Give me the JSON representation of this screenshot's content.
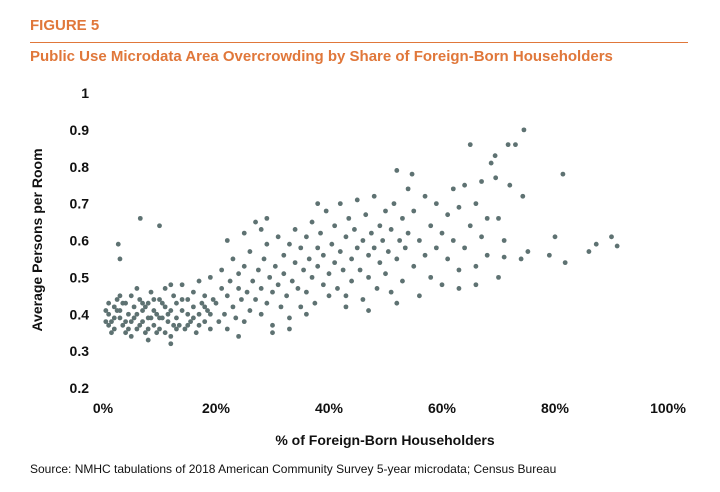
{
  "figure_label": "FIGURE 5",
  "source": "Source: NMHC tabulations of 2018 American Community Survey 5-year microdata; Census Bureau",
  "chart_data": {
    "type": "scatter",
    "title": "Public Use Microdata Area Overcrowding by Share of Foreign-Born Householders",
    "xlabel": "% of Foreign-Born Householders",
    "ylabel": "Average Persons per Room",
    "xlim": [
      0,
      100
    ],
    "ylim": [
      0.2,
      1
    ],
    "x_ticks": [
      "0%",
      "20%",
      "40%",
      "60%",
      "80%",
      "100%"
    ],
    "x_tick_values": [
      0,
      20,
      40,
      60,
      80,
      100
    ],
    "y_ticks": [
      "0.2",
      "0.3",
      "0.4",
      "0.5",
      "0.6",
      "0.7",
      "0.8",
      "0.9",
      "1"
    ],
    "y_tick_values": [
      0.2,
      0.3,
      0.4,
      0.5,
      0.6,
      0.7,
      0.8,
      0.9,
      1
    ],
    "grid": false,
    "marker_color": "#5e7272",
    "points": [
      [
        1,
        0.4
      ],
      [
        1.5,
        0.38
      ],
      [
        2,
        0.42
      ],
      [
        2,
        0.36
      ],
      [
        2.5,
        0.44
      ],
      [
        3,
        0.39
      ],
      [
        3,
        0.41
      ],
      [
        3.5,
        0.37
      ],
      [
        4,
        0.43
      ],
      [
        4,
        0.35
      ],
      [
        4.5,
        0.4
      ],
      [
        5,
        0.38
      ],
      [
        5,
        0.45
      ],
      [
        5.5,
        0.42
      ],
      [
        6,
        0.36
      ],
      [
        6,
        0.4
      ],
      [
        6.5,
        0.44
      ],
      [
        7,
        0.38
      ],
      [
        7,
        0.41
      ],
      [
        7.5,
        0.35
      ],
      [
        8,
        0.43
      ],
      [
        8,
        0.39
      ],
      [
        8.5,
        0.46
      ],
      [
        9,
        0.37
      ],
      [
        9,
        0.41
      ],
      [
        9.5,
        0.4
      ],
      [
        10,
        0.44
      ],
      [
        10,
        0.36
      ],
      [
        10.5,
        0.39
      ],
      [
        11,
        0.42
      ],
      [
        11,
        0.47
      ],
      [
        11.5,
        0.38
      ],
      [
        12,
        0.41
      ],
      [
        12,
        0.34
      ],
      [
        12.5,
        0.45
      ],
      [
        13,
        0.39
      ],
      [
        13,
        0.43
      ],
      [
        13.5,
        0.37
      ],
      [
        14,
        0.41
      ],
      [
        14,
        0.48
      ],
      [
        14.5,
        0.36
      ],
      [
        15,
        0.44
      ],
      [
        15,
        0.4
      ],
      [
        15.5,
        0.38
      ],
      [
        16,
        0.46
      ],
      [
        16,
        0.42
      ],
      [
        16.5,
        0.35
      ],
      [
        17,
        0.4
      ],
      [
        17,
        0.49
      ],
      [
        17.5,
        0.43
      ],
      [
        18,
        0.38
      ],
      [
        18,
        0.45
      ],
      [
        18.5,
        0.41
      ],
      [
        19,
        0.36
      ],
      [
        19,
        0.5
      ],
      [
        19.5,
        0.44
      ],
      [
        1,
        0.43
      ],
      [
        1.5,
        0.35
      ],
      [
        2,
        0.39
      ],
      [
        3,
        0.45
      ],
      [
        4,
        0.38
      ],
      [
        5,
        0.34
      ],
      [
        6,
        0.47
      ],
      [
        7,
        0.43
      ],
      [
        8,
        0.36
      ],
      [
        9,
        0.44
      ],
      [
        10,
        0.39
      ],
      [
        11,
        0.35
      ],
      [
        12,
        0.48
      ],
      [
        13,
        0.36
      ],
      [
        14,
        0.44
      ],
      [
        15,
        0.37
      ],
      [
        16,
        0.39
      ],
      [
        17,
        0.37
      ],
      [
        18,
        0.42
      ],
      [
        19,
        0.4
      ],
      [
        0.5,
        0.41
      ],
      [
        0.5,
        0.38
      ],
      [
        1,
        0.37
      ],
      [
        2.5,
        0.41
      ],
      [
        3.5,
        0.43
      ],
      [
        4.5,
        0.36
      ],
      [
        5.5,
        0.39
      ],
      [
        6.5,
        0.37
      ],
      [
        7.5,
        0.42
      ],
      [
        8.5,
        0.39
      ],
      [
        9.5,
        0.35
      ],
      [
        10.5,
        0.43
      ],
      [
        11.5,
        0.4
      ],
      [
        12.5,
        0.37
      ],
      [
        2.7,
        0.59
      ],
      [
        6.6,
        0.66
      ],
      [
        10,
        0.64
      ],
      [
        3,
        0.55
      ],
      [
        8,
        0.33
      ],
      [
        12,
        0.32
      ],
      [
        20,
        0.43
      ],
      [
        20.5,
        0.38
      ],
      [
        21,
        0.47
      ],
      [
        21,
        0.52
      ],
      [
        21.5,
        0.4
      ],
      [
        22,
        0.45
      ],
      [
        22,
        0.36
      ],
      [
        22.5,
        0.49
      ],
      [
        23,
        0.42
      ],
      [
        23,
        0.55
      ],
      [
        23.5,
        0.39
      ],
      [
        24,
        0.47
      ],
      [
        24,
        0.51
      ],
      [
        24.5,
        0.44
      ],
      [
        25,
        0.38
      ],
      [
        25,
        0.53
      ],
      [
        25.5,
        0.46
      ],
      [
        26,
        0.41
      ],
      [
        26,
        0.57
      ],
      [
        26.5,
        0.49
      ],
      [
        27,
        0.44
      ],
      [
        27,
        0.65
      ],
      [
        27.5,
        0.52
      ],
      [
        28,
        0.4
      ],
      [
        28,
        0.47
      ],
      [
        28.5,
        0.55
      ],
      [
        29,
        0.43
      ],
      [
        29,
        0.59
      ],
      [
        29.5,
        0.5
      ],
      [
        30,
        0.46
      ],
      [
        30,
        0.37
      ],
      [
        30.5,
        0.53
      ],
      [
        31,
        0.48
      ],
      [
        31,
        0.61
      ],
      [
        31.5,
        0.42
      ],
      [
        32,
        0.56
      ],
      [
        32,
        0.51
      ],
      [
        32.5,
        0.45
      ],
      [
        33,
        0.59
      ],
      [
        33,
        0.39
      ],
      [
        33.5,
        0.49
      ],
      [
        34,
        0.54
      ],
      [
        34,
        0.63
      ],
      [
        34.5,
        0.47
      ],
      [
        35,
        0.58
      ],
      [
        35,
        0.42
      ],
      [
        35.5,
        0.52
      ],
      [
        36,
        0.61
      ],
      [
        36,
        0.46
      ],
      [
        36.5,
        0.55
      ],
      [
        37,
        0.5
      ],
      [
        37,
        0.65
      ],
      [
        37.5,
        0.43
      ],
      [
        38,
        0.58
      ],
      [
        38,
        0.53
      ],
      [
        38.5,
        0.62
      ],
      [
        39,
        0.48
      ],
      [
        39,
        0.56
      ],
      [
        39.5,
        0.68
      ],
      [
        40,
        0.51
      ],
      [
        40,
        0.45
      ],
      [
        22,
        0.6
      ],
      [
        25,
        0.62
      ],
      [
        28,
        0.63
      ],
      [
        24,
        0.34
      ],
      [
        30,
        0.35
      ],
      [
        33,
        0.36
      ],
      [
        36,
        0.4
      ],
      [
        29,
        0.66
      ],
      [
        38,
        0.7
      ],
      [
        40.5,
        0.59
      ],
      [
        41,
        0.54
      ],
      [
        41,
        0.64
      ],
      [
        41.5,
        0.47
      ],
      [
        42,
        0.57
      ],
      [
        42,
        0.7
      ],
      [
        42.5,
        0.52
      ],
      [
        43,
        0.61
      ],
      [
        43,
        0.45
      ],
      [
        43.5,
        0.66
      ],
      [
        44,
        0.55
      ],
      [
        44,
        0.49
      ],
      [
        44.5,
        0.63
      ],
      [
        45,
        0.58
      ],
      [
        45,
        0.71
      ],
      [
        45.5,
        0.52
      ],
      [
        46,
        0.6
      ],
      [
        46,
        0.44
      ],
      [
        46.5,
        0.67
      ],
      [
        47,
        0.56
      ],
      [
        47,
        0.5
      ],
      [
        47.5,
        0.62
      ],
      [
        48,
        0.72
      ],
      [
        48,
        0.58
      ],
      [
        48.5,
        0.47
      ],
      [
        49,
        0.64
      ],
      [
        49,
        0.54
      ],
      [
        49.5,
        0.6
      ],
      [
        50,
        0.68
      ],
      [
        50,
        0.51
      ],
      [
        50.5,
        0.57
      ],
      [
        51,
        0.63
      ],
      [
        51,
        0.46
      ],
      [
        51.5,
        0.7
      ],
      [
        52,
        0.55
      ],
      [
        52,
        0.79
      ],
      [
        52.5,
        0.6
      ],
      [
        53,
        0.49
      ],
      [
        53,
        0.66
      ],
      [
        53.5,
        0.58
      ],
      [
        54,
        0.62
      ],
      [
        54,
        0.74
      ],
      [
        54.7,
        0.78
      ],
      [
        55,
        0.53
      ],
      [
        55,
        0.68
      ],
      [
        56,
        0.6
      ],
      [
        56,
        0.45
      ],
      [
        57,
        0.72
      ],
      [
        57,
        0.56
      ],
      [
        58,
        0.64
      ],
      [
        58,
        0.5
      ],
      [
        59,
        0.58
      ],
      [
        59,
        0.7
      ],
      [
        60,
        0.62
      ],
      [
        60,
        0.48
      ],
      [
        43,
        0.42
      ],
      [
        47,
        0.41
      ],
      [
        52,
        0.43
      ],
      [
        61,
        0.67
      ],
      [
        61,
        0.55
      ],
      [
        62,
        0.74
      ],
      [
        62,
        0.6
      ],
      [
        63,
        0.52
      ],
      [
        63,
        0.69
      ],
      [
        64,
        0.75
      ],
      [
        64,
        0.58
      ],
      [
        65,
        0.86
      ],
      [
        65,
        0.64
      ],
      [
        66,
        0.53
      ],
      [
        66,
        0.7
      ],
      [
        67,
        0.76
      ],
      [
        67,
        0.61
      ],
      [
        68,
        0.66
      ],
      [
        68,
        0.56
      ],
      [
        68.7,
        0.81
      ],
      [
        69.4,
        0.83
      ],
      [
        69.5,
        0.77
      ],
      [
        70,
        0.66
      ],
      [
        70,
        0.5
      ],
      [
        71,
        0.6
      ],
      [
        71,
        0.555
      ],
      [
        71.7,
        0.86
      ],
      [
        72,
        0.75
      ],
      [
        73,
        0.86
      ],
      [
        74,
        0.55
      ],
      [
        74.3,
        0.72
      ],
      [
        74.5,
        0.9
      ],
      [
        75.2,
        0.57
      ],
      [
        79,
        0.56
      ],
      [
        80,
        0.61
      ],
      [
        81.4,
        0.78
      ],
      [
        81.8,
        0.54
      ],
      [
        86,
        0.57
      ],
      [
        87.3,
        0.59
      ],
      [
        90,
        0.61
      ],
      [
        91,
        0.585
      ],
      [
        63,
        0.47
      ],
      [
        66,
        0.48
      ]
    ]
  }
}
